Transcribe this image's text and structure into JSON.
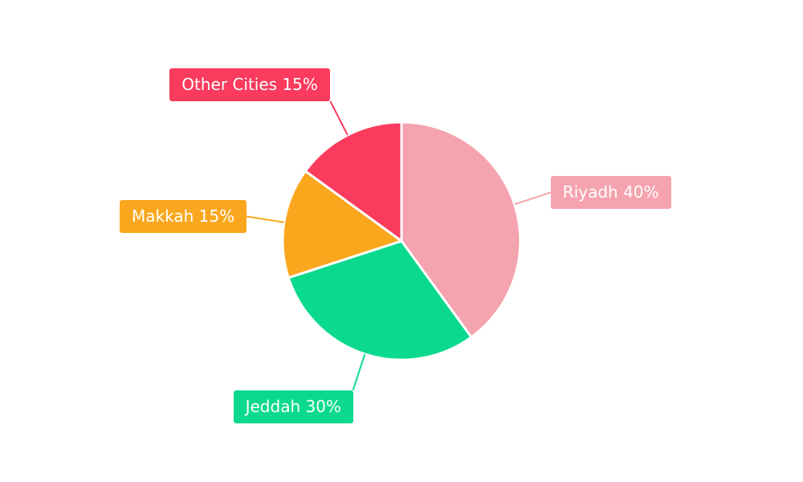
{
  "chart_data": {
    "type": "pie",
    "slices": [
      {
        "label": "Riyadh",
        "value": 40,
        "display": "Riyadh 40%",
        "color": "#F5A3AE"
      },
      {
        "label": "Jeddah",
        "value": 30,
        "display": "Jeddah 30%",
        "color": "#0BDA8E"
      },
      {
        "label": "Makkah",
        "value": 15,
        "display": "Makkah 15%",
        "color": "#FAA71E"
      },
      {
        "label": "Other Cities",
        "value": 15,
        "display": "Other Cities 15%",
        "color": "#FA3B5D"
      }
    ],
    "unit": "%",
    "start_angle_deg": 0,
    "direction": "clockwise",
    "label_text_color": "#FFFFFF",
    "background": "#FFFFFF",
    "legend_position": "none",
    "labels_style": "outside-boxes-with-leader-lines"
  }
}
